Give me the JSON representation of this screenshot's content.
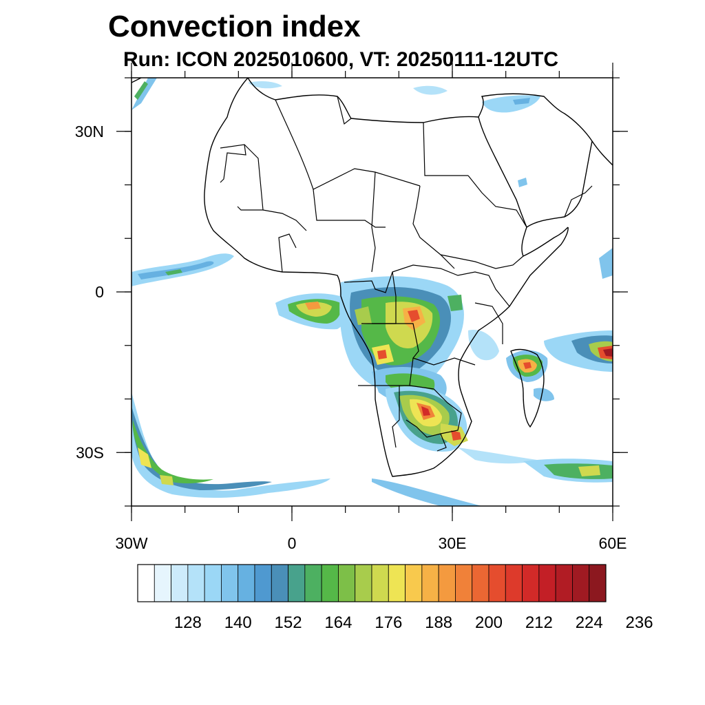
{
  "header": {
    "title": "Convection index",
    "subtitle": "Run: ICON 2025010600,  VT: 20250111-12UTC"
  },
  "map": {
    "extent": {
      "lon": [
        -30,
        60
      ],
      "lat": [
        -40,
        40
      ]
    },
    "lon_ticks": [
      {
        "value": -30,
        "label": "30W"
      },
      {
        "value": 0,
        "label": "0"
      },
      {
        "value": 30,
        "label": "30E"
      },
      {
        "value": 60,
        "label": "60E"
      }
    ],
    "lat_ticks": [
      {
        "value": 30,
        "label": "30N"
      },
      {
        "value": 0,
        "label": "0"
      },
      {
        "value": -30,
        "label": "30S"
      }
    ],
    "minor_lon_step": 10,
    "minor_lat_step": 10
  },
  "colorbar": {
    "colors": [
      "#ffffff",
      "#e6f5fd",
      "#cdebfb",
      "#b4e2f9",
      "#9bd7f6",
      "#80c4ec",
      "#66b1e1",
      "#4f99d0",
      "#4a8fb8",
      "#48a28c",
      "#4db061",
      "#55b848",
      "#7dbf48",
      "#a8cc4c",
      "#cfd94f",
      "#eee454",
      "#f8c94d",
      "#f6b146",
      "#f49a3f",
      "#f08139",
      "#eb6733",
      "#e54d2e",
      "#dd3a2b",
      "#d22a28",
      "#c31f26",
      "#b11c24",
      "#a01a22",
      "#8c181f"
    ],
    "labels": [
      "128",
      "140",
      "152",
      "164",
      "176",
      "188",
      "200",
      "212",
      "224",
      "236"
    ]
  }
}
